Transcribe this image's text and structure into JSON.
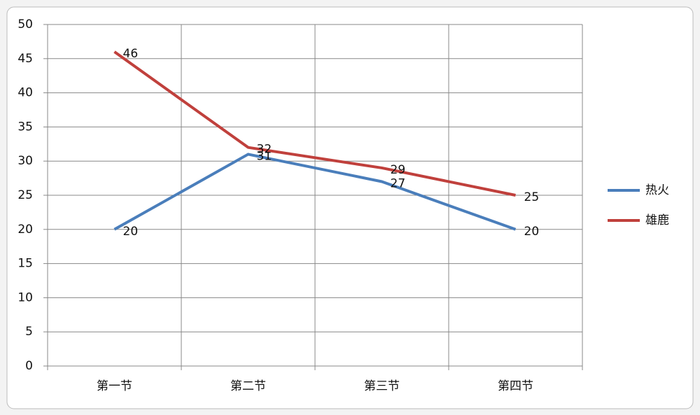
{
  "chart_data": {
    "type": "line",
    "categories": [
      "第一节",
      "第二节",
      "第三节",
      "第四节"
    ],
    "series": [
      {
        "name": "热火",
        "color": "#4a7ebb",
        "values": [
          20,
          31,
          27,
          20
        ]
      },
      {
        "name": "雄鹿",
        "color": "#c0403c",
        "values": [
          46,
          32,
          29,
          25
        ]
      }
    ],
    "ylim": [
      0,
      50
    ],
    "yticks": [
      0,
      5,
      10,
      15,
      20,
      25,
      30,
      35,
      40,
      45,
      50
    ],
    "grid": true,
    "legend": "right",
    "data_labels": true
  }
}
